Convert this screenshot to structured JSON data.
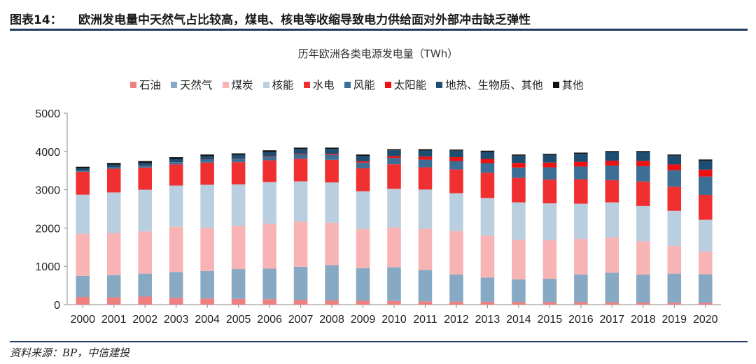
{
  "header": {
    "figure_label": "图表14：",
    "figure_title": "欧洲发电量中天然气占比较高，煤电、核电等收缩导致电力供给面对外部冲击缺乏弹性"
  },
  "footer": {
    "source": "资料来源：BP，中信建投"
  },
  "colors": {
    "rule": "#1f3b62",
    "oil": "#f08080",
    "gas": "#87a9c4",
    "coal": "#f8b4b4",
    "nuclear": "#b9cfe0",
    "hydro": "#f03030",
    "wind": "#3d6f96",
    "solar": "#ee1111",
    "geo_bio": "#1e4d72",
    "other": "#111111"
  },
  "chart_data": {
    "type": "bar",
    "stacked": true,
    "title": "历年欧洲各类电源发电量（TWh）",
    "xlabel": "",
    "ylabel": "",
    "ylim": [
      0,
      5000
    ],
    "yticks": [
      0,
      1000,
      2000,
      3000,
      4000,
      5000
    ],
    "legend_position": "top",
    "categories": [
      "2000",
      "2001",
      "2002",
      "2003",
      "2004",
      "2005",
      "2006",
      "2007",
      "2008",
      "2009",
      "2010",
      "2011",
      "2012",
      "2013",
      "2014",
      "2015",
      "2016",
      "2017",
      "2018",
      "2019",
      "2020"
    ],
    "series": [
      {
        "name": "石油",
        "key": "oil",
        "values": [
          200,
          190,
          210,
          180,
          160,
          150,
          140,
          120,
          110,
          100,
          95,
          85,
          80,
          75,
          70,
          65,
          65,
          60,
          55,
          50,
          45
        ]
      },
      {
        "name": "天然气",
        "key": "gas",
        "values": [
          550,
          580,
          600,
          670,
          720,
          780,
          800,
          870,
          920,
          850,
          880,
          820,
          710,
          630,
          590,
          610,
          720,
          770,
          730,
          760,
          750
        ]
      },
      {
        "name": "煤炭",
        "key": "coal",
        "values": [
          1100,
          1100,
          1100,
          1180,
          1130,
          1130,
          1170,
          1180,
          1110,
          1020,
          1040,
          1080,
          1130,
          1100,
          1030,
          1010,
          930,
          920,
          870,
          720,
          590
        ]
      },
      {
        "name": "核能",
        "key": "nuclear",
        "values": [
          1020,
          1060,
          1090,
          1080,
          1120,
          1080,
          1090,
          1050,
          1050,
          990,
          1010,
          1020,
          990,
          980,
          980,
          960,
          920,
          920,
          920,
          920,
          830
        ]
      },
      {
        "name": "水电",
        "key": "hydro",
        "values": [
          600,
          620,
          580,
          550,
          580,
          580,
          570,
          590,
          590,
          600,
          640,
          580,
          620,
          660,
          640,
          620,
          640,
          580,
          640,
          630,
          650
        ]
      },
      {
        "name": "风能",
        "key": "wind",
        "values": [
          25,
          35,
          45,
          55,
          70,
          80,
          95,
          115,
          130,
          150,
          165,
          200,
          220,
          250,
          270,
          320,
          330,
          380,
          400,
          430,
          480
        ]
      },
      {
        "name": "太阳能",
        "key": "solar",
        "values": [
          1,
          2,
          3,
          4,
          5,
          8,
          12,
          18,
          25,
          35,
          50,
          80,
          100,
          110,
          120,
          125,
          125,
          130,
          140,
          150,
          180
        ]
      },
      {
        "name": "地热、生物质、其他",
        "key": "geo_bio",
        "values": [
          60,
          65,
          70,
          80,
          90,
          100,
          110,
          120,
          130,
          140,
          150,
          160,
          170,
          180,
          190,
          200,
          210,
          220,
          225,
          230,
          235
        ]
      },
      {
        "name": "其他",
        "key": "other",
        "values": [
          44,
          48,
          52,
          51,
          45,
          42,
          43,
          37,
          35,
          35,
          30,
          35,
          30,
          35,
          31,
          30,
          30,
          30,
          30,
          30,
          30
        ]
      }
    ]
  }
}
